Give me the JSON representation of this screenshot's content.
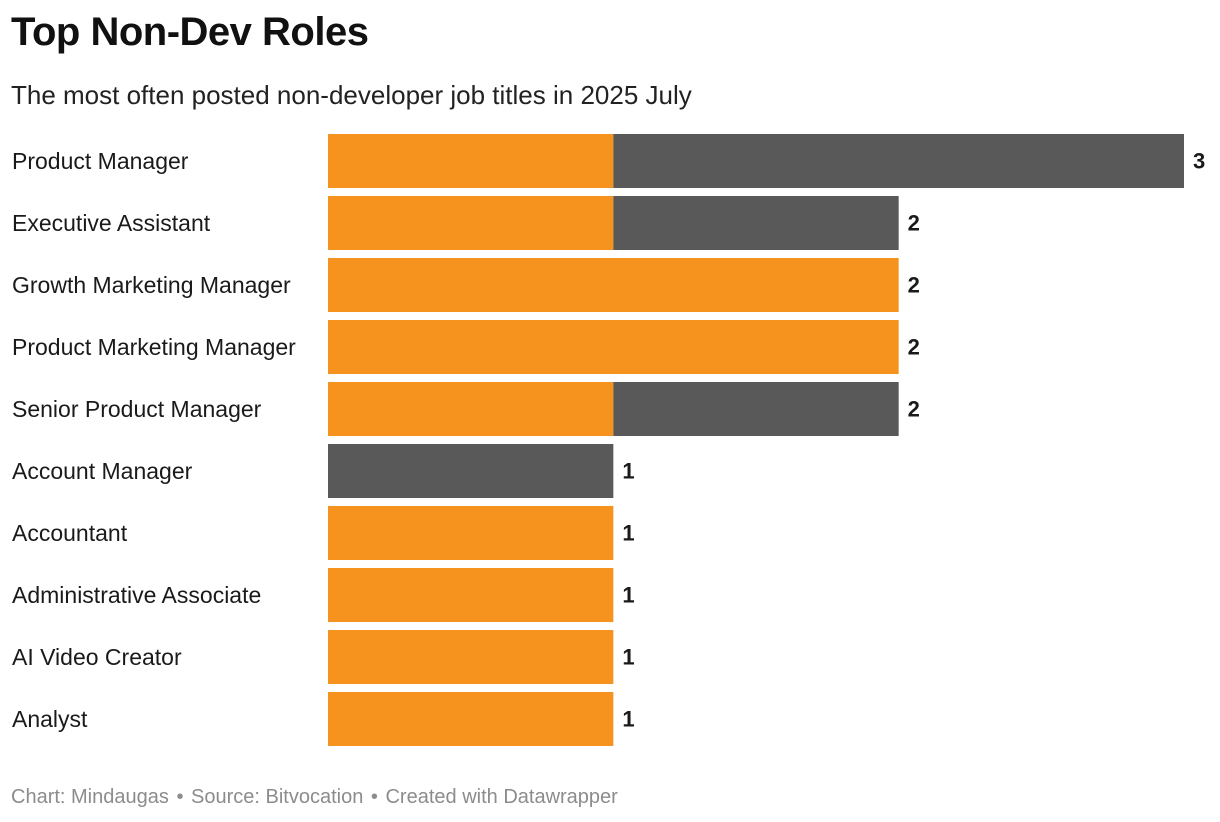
{
  "title": "Top Non-Dev Roles",
  "subtitle": "The most often posted non-developer job titles in 2025 July",
  "footer": {
    "chart_credit": "Chart: Mindaugas",
    "separator": "•",
    "source": "Source: Bitvocation",
    "created_with": "Created with Datawrapper"
  },
  "colors": {
    "orange": "#f5931e",
    "gray": "#595959",
    "label": "#1a1a1a",
    "value": "#1a1a1a"
  },
  "chart_data": {
    "type": "bar",
    "orientation": "horizontal",
    "stacked": true,
    "title": "Top Non-Dev Roles",
    "subtitle": "The most often posted non-developer job titles in 2025 July",
    "xlabel": "",
    "ylabel": "",
    "xlim": [
      0,
      3
    ],
    "grid": false,
    "legend": "none",
    "categories": [
      "Product Manager",
      "Executive Assistant",
      "Growth Marketing Manager",
      "Product Marketing Manager",
      "Senior Product Manager",
      "Account Manager",
      "Accountant",
      "Administrative Associate",
      "AI Video Creator",
      "Analyst"
    ],
    "series": [
      {
        "color": "#f5931e",
        "values": [
          1,
          1,
          2,
          2,
          1,
          0,
          1,
          1,
          1,
          1
        ]
      },
      {
        "color": "#595959",
        "values": [
          2,
          1,
          0,
          0,
          1,
          1,
          0,
          0,
          0,
          0
        ]
      }
    ],
    "totals": [
      3,
      2,
      2,
      2,
      2,
      1,
      1,
      1,
      1,
      1
    ]
  }
}
